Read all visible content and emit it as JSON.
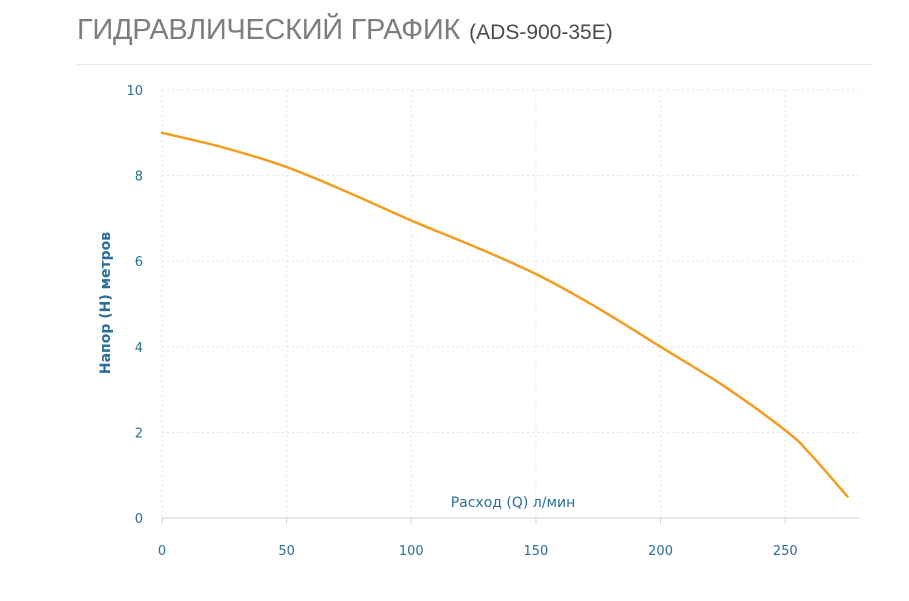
{
  "header": {
    "title": "ГИДРАВЛИЧЕСКИЙ ГРАФИК",
    "model": "(ADS-900-35E)"
  },
  "chart_data": {
    "type": "line",
    "xlabel": "Расход (Q) л/мин",
    "ylabel": "Напор (H) метров",
    "xlim": [
      0,
      280
    ],
    "ylim": [
      0,
      10
    ],
    "x_ticks": [
      0,
      50,
      100,
      150,
      200,
      250
    ],
    "y_ticks": [
      0,
      2,
      4,
      6,
      8,
      10
    ],
    "grid": true,
    "series": [
      {
        "color": "#f39c1f",
        "x": [
          0,
          25,
          50,
          75,
          100,
          125,
          150,
          175,
          200,
          225,
          250,
          260,
          275
        ],
        "y": [
          9.0,
          8.65,
          8.2,
          7.6,
          6.95,
          6.35,
          5.7,
          4.9,
          4.0,
          3.1,
          2.05,
          1.5,
          0.5
        ]
      }
    ],
    "colors": {
      "axis_text": "#2a6f97",
      "grid": "#e3e3e3",
      "line": "#f39c1f"
    }
  }
}
